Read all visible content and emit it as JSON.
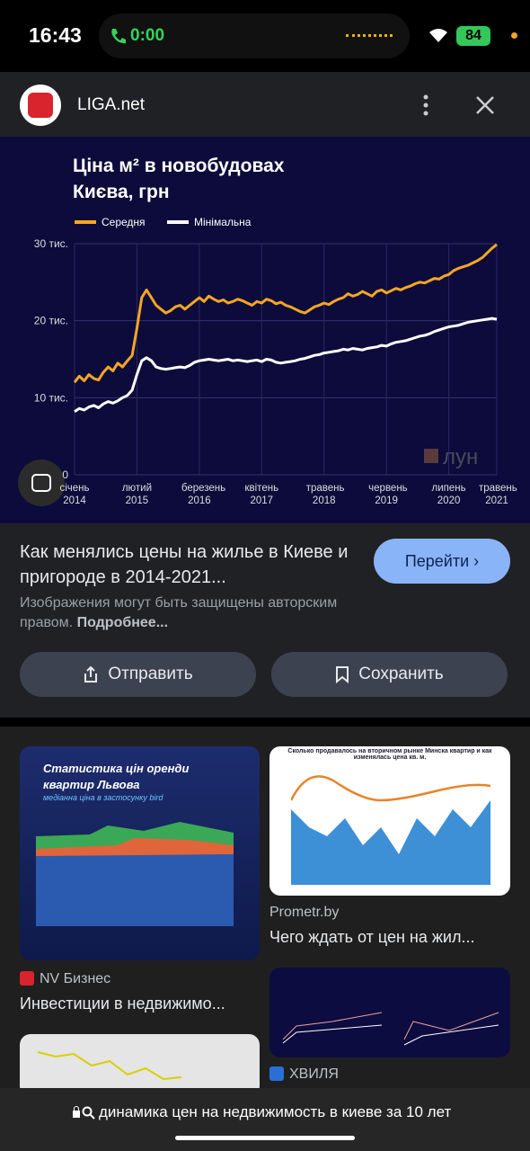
{
  "status_bar": {
    "time": "16:43",
    "call_timer": "0:00",
    "battery": "84"
  },
  "header": {
    "site": "LIGA.net"
  },
  "chart_data": {
    "type": "line",
    "title": "Ціна м² в новобудовах Києва, грн",
    "watermark": "лун",
    "categories": [
      "січень 2014",
      null,
      null,
      null,
      null,
      null,
      null,
      null,
      null,
      null,
      null,
      null,
      null,
      "лютий 2015",
      null,
      null,
      null,
      null,
      null,
      null,
      null,
      null,
      null,
      null,
      null,
      null,
      "березень 2016",
      null,
      null,
      null,
      null,
      null,
      null,
      null,
      null,
      null,
      null,
      null,
      null,
      "квітень 2017",
      null,
      null,
      null,
      null,
      null,
      null,
      null,
      null,
      null,
      null,
      null,
      null,
      "травень 2018",
      null,
      null,
      null,
      null,
      null,
      null,
      null,
      null,
      null,
      null,
      null,
      null,
      "червень 2019",
      null,
      null,
      null,
      null,
      null,
      null,
      null,
      null,
      null,
      null,
      null,
      null,
      "липень 2020",
      null,
      null,
      null,
      null,
      null,
      null,
      null,
      null,
      null,
      "травень 2021"
    ],
    "series": [
      {
        "name": "Середня",
        "color": "#f5a623",
        "values": [
          12000,
          12800,
          12200,
          13000,
          12500,
          12300,
          13300,
          14000,
          13500,
          14500,
          14000,
          14800,
          15500,
          19000,
          23000,
          24000,
          23000,
          22000,
          21500,
          21000,
          21300,
          21800,
          22000,
          21500,
          22000,
          22500,
          23000,
          22500,
          23200,
          22800,
          22500,
          22700,
          22300,
          22500,
          22800,
          22600,
          22300,
          22000,
          22500,
          22300,
          22800,
          22600,
          22200,
          22400,
          22000,
          21800,
          21500,
          21200,
          21000,
          21400,
          21800,
          22000,
          22300,
          22100,
          22500,
          22800,
          23000,
          23500,
          23200,
          23400,
          23800,
          23500,
          23200,
          23800,
          24000,
          23600,
          23900,
          24200,
          24000,
          24300,
          24500,
          24800,
          25000,
          24900,
          25200,
          25500,
          25400,
          25800,
          26000,
          26500,
          26800,
          27000,
          27200,
          27500,
          27800,
          28200,
          28800,
          29400,
          29900
        ]
      },
      {
        "name": "Мінімальна",
        "color": "#ffffff",
        "values": [
          8200,
          8600,
          8400,
          8800,
          9000,
          8700,
          9200,
          9500,
          9300,
          9600,
          10000,
          10300,
          11000,
          13000,
          14800,
          15200,
          14800,
          14000,
          13800,
          13700,
          13800,
          13900,
          14000,
          13900,
          14200,
          14600,
          14800,
          14900,
          15000,
          14900,
          14800,
          14900,
          15000,
          14800,
          14900,
          14800,
          14700,
          14800,
          14900,
          14700,
          15000,
          14900,
          14600,
          14500,
          14600,
          14700,
          14800,
          15000,
          15100,
          15300,
          15500,
          15600,
          15800,
          15900,
          16000,
          16100,
          16300,
          16200,
          16400,
          16300,
          16200,
          16400,
          16500,
          16600,
          16800,
          16700,
          17000,
          17200,
          17300,
          17400,
          17600,
          17800,
          18000,
          18100,
          18300,
          18600,
          18800,
          19000,
          19200,
          19300,
          19400,
          19600,
          19800,
          19900,
          20000,
          20100,
          20200,
          20300,
          20200
        ]
      }
    ],
    "ylim": [
      0,
      30000
    ],
    "yticks": [
      0,
      {
        "value": 10000,
        "label": "10 тис."
      },
      {
        "value": 20000,
        "label": "20 тис."
      },
      {
        "value": 30000,
        "label": "30 тис."
      }
    ],
    "grid": true
  },
  "result": {
    "title": "Как менялись цены на жилье в Киеве и пригороде в 2014-2021...",
    "button": "Перейти",
    "notice": "Изображения могут быть защищены авторским правом.",
    "notice_link": "Подробнее...",
    "share": "Отправить",
    "save": "Сохранить"
  },
  "thumbnails": {
    "lviv_title": "Статистика цін оренди квартир Львова",
    "lviv_subtitle": "медіанна ціна в застосунку bird",
    "minsk_title": "Сколько продавалось на вторичном рынке Минска квартир и как изменялась цена кв. м."
  },
  "grid_items": [
    {
      "source": "Prometr.by",
      "title": "Чего ждать от цен на жил..."
    },
    {
      "source": "NV Бизнес",
      "title": "Инвестиции в недвижимо..."
    },
    {
      "source": "ХВИЛЯ"
    }
  ],
  "search": {
    "query": "динамика цен на недвижимость в киеве за 10 лет"
  }
}
